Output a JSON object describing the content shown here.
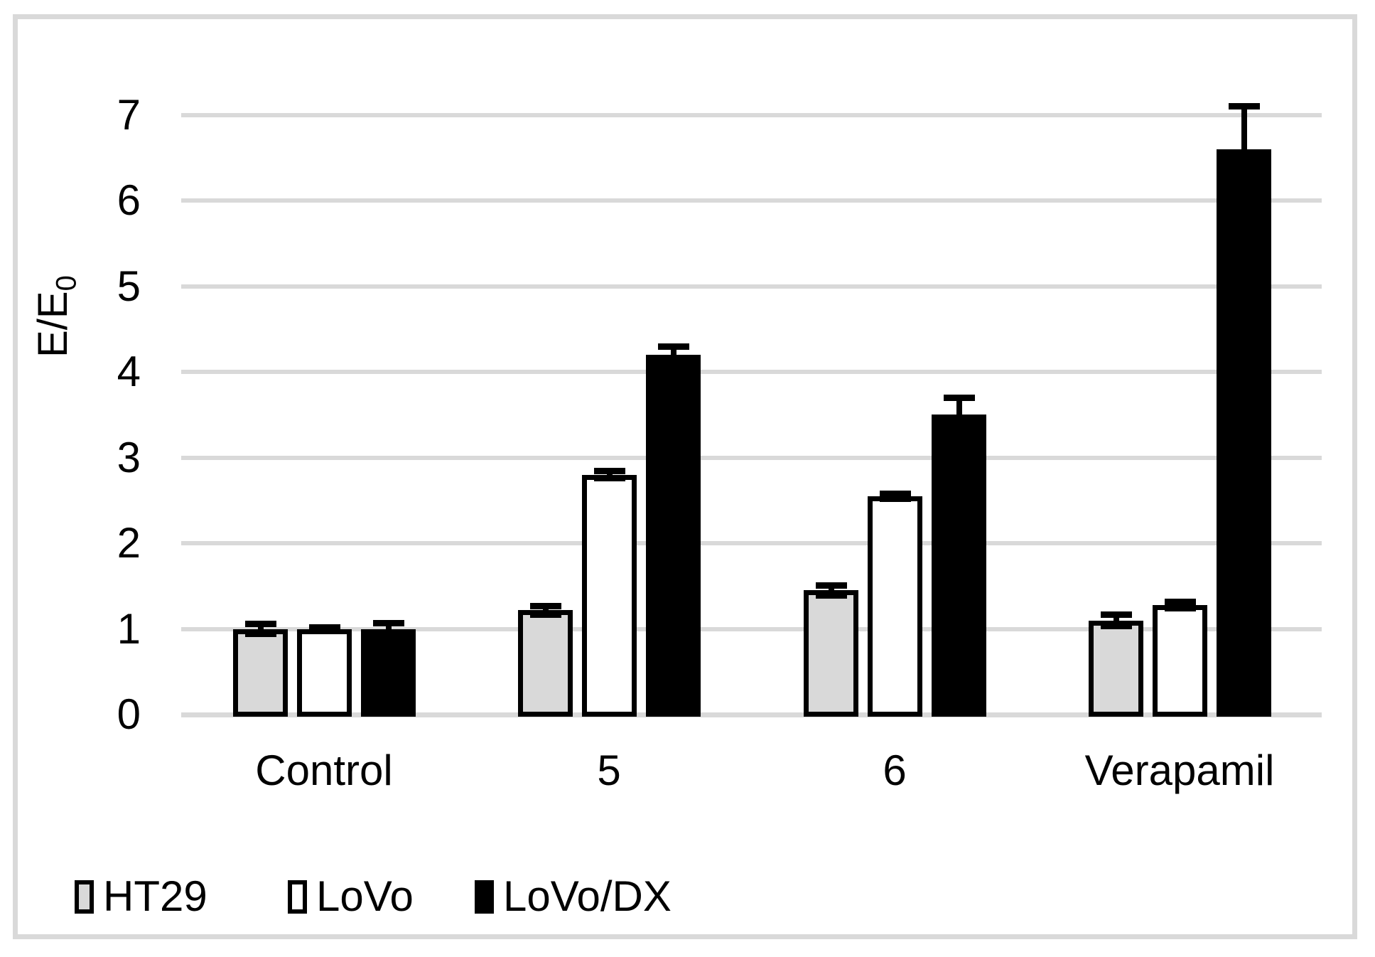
{
  "figure": {
    "background": "#ffffff",
    "border_color": "#d9d9d9"
  },
  "chart_data": {
    "type": "bar",
    "title": "",
    "ylabel_base": "E/E",
    "ylabel_sub": "0",
    "xlabel": "",
    "categories": [
      "Control",
      "5",
      "6",
      "Verapamil"
    ],
    "series": [
      {
        "name": "HT29",
        "fill": "#d9d9d9",
        "border": "#000000",
        "values": [
          1.0,
          1.22,
          1.45,
          1.1
        ],
        "errors": [
          0.06,
          0.05,
          0.06,
          0.07
        ]
      },
      {
        "name": "LoVo",
        "fill": "#ffffff",
        "border": "#000000",
        "values": [
          1.0,
          2.8,
          2.55,
          1.28
        ],
        "errors": [
          0.02,
          0.04,
          0.03,
          0.04
        ]
      },
      {
        "name": "LoVo/DX",
        "fill": "#000000",
        "border": "#000000",
        "values": [
          1.0,
          4.2,
          3.5,
          6.6
        ],
        "errors": [
          0.07,
          0.1,
          0.2,
          0.5
        ]
      }
    ],
    "y_ticks": [
      0,
      1,
      2,
      3,
      4,
      5,
      6,
      7
    ],
    "ylim": [
      0,
      7
    ],
    "grid": true,
    "gridline_color": "#d9d9d9",
    "error_bars": true,
    "legend_position": "bottom-left"
  }
}
